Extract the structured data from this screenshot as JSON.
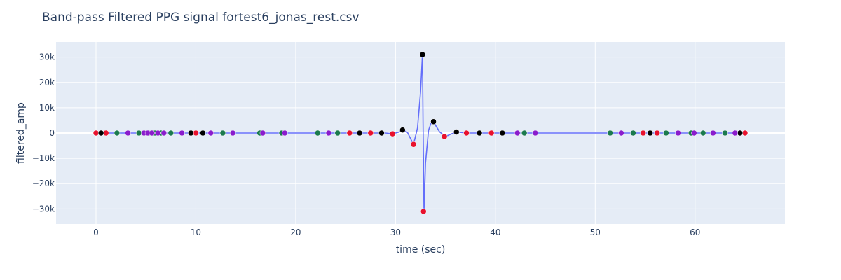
{
  "chart_data": {
    "type": "scatter",
    "title": "Band-pass Filtered PPG signal fortest6_jonas_rest.csv",
    "xlabel": "time (sec)",
    "ylabel": "filtered_amp",
    "xlim": [
      -4,
      69
    ],
    "ylim": [
      -36000,
      36000
    ],
    "grid": true,
    "legend": "none",
    "x_ticks": [
      0,
      10,
      20,
      30,
      40,
      50,
      60
    ],
    "x_tick_labels": [
      "0",
      "10",
      "20",
      "30",
      "40",
      "50",
      "60"
    ],
    "y_ticks": [
      30000,
      20000,
      10000,
      0,
      -10000,
      -20000,
      -30000
    ],
    "y_tick_labels": [
      "30k",
      "20k",
      "10k",
      "0",
      "−10k",
      "−20k",
      "−30k"
    ],
    "colors": {
      "line": "#636efa",
      "red": "#e8112d",
      "black": "#000000",
      "green": "#1b7a4e",
      "purple": "#8a1ccc",
      "plot_bg": "#e5ecf6",
      "grid": "#ffffff",
      "text": "#2a3f5f"
    },
    "line": {
      "x": [
        0,
        0.5,
        1,
        2,
        3,
        4,
        5,
        6,
        7,
        8,
        9,
        10,
        11,
        12,
        13,
        14,
        15,
        16,
        17,
        18,
        19,
        20,
        21,
        22,
        23,
        24,
        25,
        26,
        27,
        28,
        29,
        29.7,
        30.3,
        30.8,
        31.2,
        31.8,
        32.2,
        32.5,
        32.7,
        32.75,
        32.85,
        33.0,
        33.3,
        33.6,
        33.9,
        34.4,
        35.0,
        35.6,
        36.2,
        37,
        38,
        40,
        42,
        44,
        46,
        48,
        50,
        52,
        54,
        56,
        58,
        60,
        62,
        64,
        65
      ],
      "y": [
        0,
        0,
        0,
        0,
        0,
        0,
        0,
        0,
        0,
        0,
        0,
        0,
        0,
        0,
        0,
        0,
        0,
        0,
        0,
        0,
        0,
        0,
        0,
        0,
        0,
        0,
        0,
        0,
        0,
        0,
        0,
        -300,
        300,
        1200,
        200,
        -4500,
        2000,
        16000,
        31000,
        5000,
        -31000,
        -12000,
        1000,
        4500,
        3800,
        500,
        -1400,
        -300,
        400,
        0,
        0,
        0,
        0,
        0,
        0,
        0,
        0,
        0,
        0,
        0,
        0,
        0,
        0,
        0,
        0
      ]
    },
    "series": [
      {
        "color": "red",
        "points": [
          [
            0,
            0
          ],
          [
            1.0,
            0
          ],
          [
            10.0,
            0
          ],
          [
            25.4,
            0
          ],
          [
            27.5,
            0
          ],
          [
            29.7,
            -300
          ],
          [
            31.8,
            -4500
          ],
          [
            32.8,
            -31000
          ],
          [
            34.9,
            -1400
          ],
          [
            37.1,
            0
          ],
          [
            39.6,
            0
          ],
          [
            54.8,
            0
          ],
          [
            56.2,
            0
          ],
          [
            65.0,
            0
          ]
        ]
      },
      {
        "color": "black",
        "points": [
          [
            0.5,
            0
          ],
          [
            9.5,
            0
          ],
          [
            10.7,
            0
          ],
          [
            26.4,
            0
          ],
          [
            28.6,
            0
          ],
          [
            30.7,
            1200
          ],
          [
            32.7,
            31000
          ],
          [
            33.8,
            4500
          ],
          [
            36.1,
            400
          ],
          [
            38.4,
            0
          ],
          [
            40.7,
            0
          ],
          [
            55.5,
            0
          ],
          [
            64.5,
            0
          ]
        ]
      },
      {
        "color": "green",
        "points": [
          [
            2.1,
            0
          ],
          [
            4.3,
            0
          ],
          [
            5.1,
            0
          ],
          [
            5.5,
            0
          ],
          [
            5.9,
            0
          ],
          [
            6.5,
            0
          ],
          [
            7.5,
            0
          ],
          [
            12.7,
            0
          ],
          [
            16.4,
            0
          ],
          [
            18.6,
            0
          ],
          [
            22.2,
            0
          ],
          [
            24.2,
            0
          ],
          [
            42.9,
            0
          ],
          [
            51.5,
            0
          ],
          [
            53.8,
            0
          ],
          [
            57.1,
            0
          ],
          [
            59.6,
            0
          ],
          [
            60.8,
            0
          ],
          [
            63.0,
            0
          ]
        ]
      },
      {
        "color": "purple",
        "points": [
          [
            3.2,
            0
          ],
          [
            4.8,
            0
          ],
          [
            5.2,
            0
          ],
          [
            5.6,
            0
          ],
          [
            6.2,
            0
          ],
          [
            6.8,
            0
          ],
          [
            8.6,
            0
          ],
          [
            11.5,
            0
          ],
          [
            13.7,
            0
          ],
          [
            16.7,
            0
          ],
          [
            18.9,
            0
          ],
          [
            23.3,
            0
          ],
          [
            42.2,
            0
          ],
          [
            44.0,
            0
          ],
          [
            52.6,
            0
          ],
          [
            58.3,
            0
          ],
          [
            59.9,
            0
          ],
          [
            61.8,
            0
          ],
          [
            64.0,
            0
          ]
        ]
      }
    ]
  }
}
